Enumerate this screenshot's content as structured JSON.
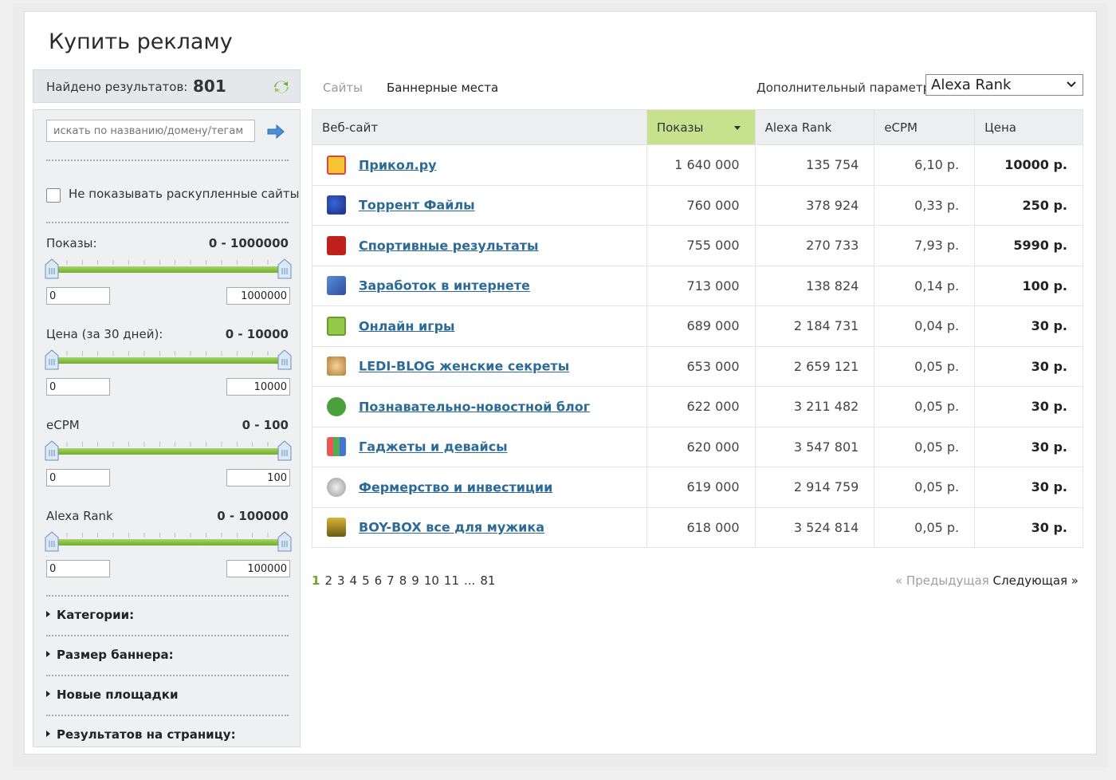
{
  "page": {
    "title": "Купить рекламу"
  },
  "summary": {
    "found_label": "Найдено результатов:",
    "found_count": "801"
  },
  "sidebar": {
    "search_placeholder": "искать по названию/домену/тегам",
    "hide_sold_label": "Не показывать раскупленные сайты",
    "filters": [
      {
        "label": "Показы:",
        "range": "0 - 1000000",
        "min": "0",
        "max": "1000000"
      },
      {
        "label": "Цена (за 30 дней):",
        "range": "0 - 10000",
        "min": "0",
        "max": "10000"
      },
      {
        "label": "eCPM",
        "range": "0 - 100",
        "min": "0",
        "max": "100"
      },
      {
        "label": "Alexa Rank",
        "range": "0 - 100000",
        "min": "0",
        "max": "100000"
      }
    ],
    "sections": [
      "Категории:",
      "Размер баннера:",
      "Новые площадки",
      "Результатов на страницу:"
    ]
  },
  "tabs": {
    "sites": "Сайты",
    "banners": "Баннерные места"
  },
  "param": {
    "label": "Дополнительный параметр:",
    "value": "Alexa Rank"
  },
  "table": {
    "headers": [
      "Веб-сайт",
      "Показы",
      "Alexa Rank",
      "eCPM",
      "Цена"
    ],
    "rows": [
      {
        "site": "Прикол.ру",
        "icon": "smiley-hand-icon",
        "shows": "1 640 000",
        "alexa": "135 754",
        "ecpm": "6,10 р.",
        "price": "10000 р."
      },
      {
        "site": "Торрент Файлы",
        "icon": "sonic-icon",
        "shows": "760 000",
        "alexa": "378 924",
        "ecpm": "0,33 р.",
        "price": "250 р."
      },
      {
        "site": "Спортивные результаты",
        "icon": "all-sport-icon",
        "shows": "755 000",
        "alexa": "270 733",
        "ecpm": "7,93 р.",
        "price": "5990 р."
      },
      {
        "site": "Заработок в интернете",
        "icon": "money-icon",
        "shows": "713 000",
        "alexa": "138 824",
        "ecpm": "0,14 р.",
        "price": "100 р."
      },
      {
        "site": "Онлайн игры",
        "icon": "game-icon",
        "shows": "689 000",
        "alexa": "2 184 731",
        "ecpm": "0,04 р.",
        "price": "30 р."
      },
      {
        "site": "LEDI-BLOG женские секреты",
        "icon": "woman-icon",
        "shows": "653 000",
        "alexa": "2 659 121",
        "ecpm": "0,05 р.",
        "price": "30 р."
      },
      {
        "site": "Познавательно-новостной блог",
        "icon": "info-icon",
        "shows": "622 000",
        "alexa": "3 211 482",
        "ecpm": "0,05 р.",
        "price": "30 р."
      },
      {
        "site": "Гаджеты и девайсы",
        "icon": "blocks-icon",
        "shows": "620 000",
        "alexa": "3 547 801",
        "ecpm": "0,05 р.",
        "price": "30 р."
      },
      {
        "site": "Фермерство и инвестиции",
        "icon": "coin-icon",
        "shows": "619 000",
        "alexa": "2 914 759",
        "ecpm": "0,05 р.",
        "price": "30 р."
      },
      {
        "site": "BOY-BOX все для мужика",
        "icon": "truck-icon",
        "shows": "618 000",
        "alexa": "3 524 814",
        "ecpm": "0,05 р.",
        "price": "30 р."
      }
    ]
  },
  "pagination": {
    "pages": [
      "1",
      "2",
      "3",
      "4",
      "5",
      "6",
      "7",
      "8",
      "9",
      "10",
      "11",
      "...",
      "81"
    ],
    "current": "1",
    "prev": "« Предыдущая",
    "next": "Следующая »"
  },
  "colors": {
    "accent_green": "#c6e28c",
    "link_blue": "#2b6a96",
    "slider_green": "#6fae2a"
  }
}
